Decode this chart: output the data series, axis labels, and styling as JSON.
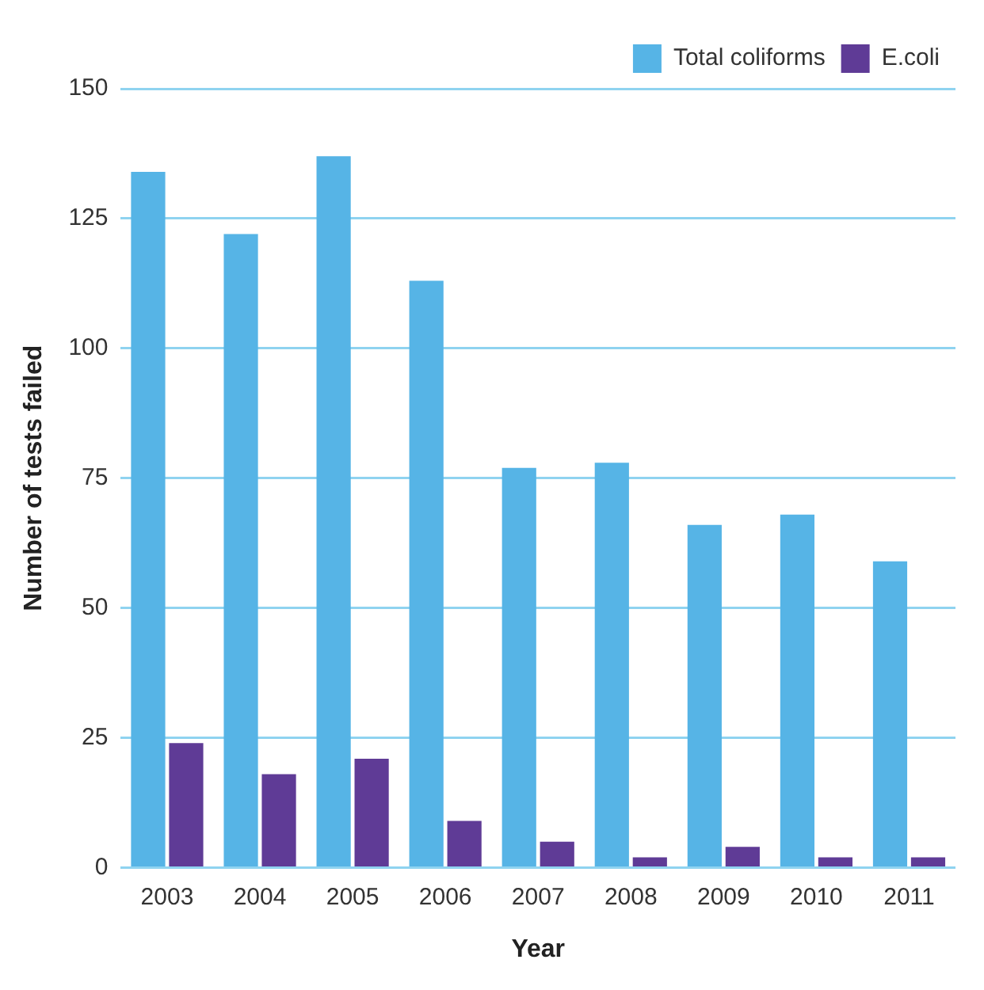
{
  "chart_data": {
    "type": "bar",
    "xlabel": "Year",
    "ylabel": "Number of tests failed",
    "categories": [
      "2003",
      "2004",
      "2005",
      "2006",
      "2007",
      "2008",
      "2009",
      "2010",
      "2011"
    ],
    "series": [
      {
        "name": "Total coliforms",
        "color": "#56b4e6",
        "values": [
          134,
          122,
          137,
          113,
          77,
          78,
          66,
          68,
          59
        ]
      },
      {
        "name": "E.coli",
        "color": "#5f3b96",
        "values": [
          24,
          18,
          21,
          9,
          5,
          2,
          4,
          2,
          2
        ]
      }
    ],
    "ylim": [
      0,
      150
    ],
    "yticks": [
      0,
      25,
      50,
      75,
      100,
      125,
      150
    ],
    "grid": "y",
    "legend": "top right"
  }
}
